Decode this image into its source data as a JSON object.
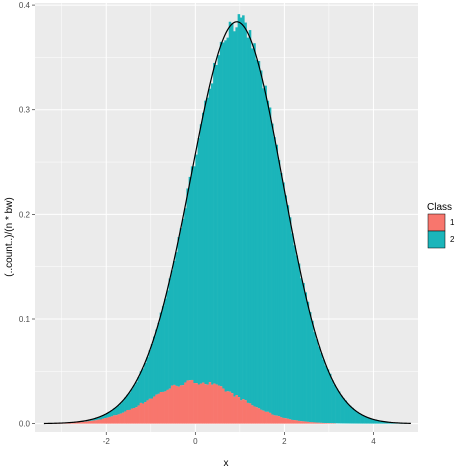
{
  "colors": {
    "class_1": "#F8766D",
    "class_2": "#1BB5BA",
    "panel_bg": "#EBEBEB",
    "grid_major": "#FFFFFF",
    "density_line": "#000000"
  },
  "chart_data": {
    "type": "histogram",
    "xlabel": "x",
    "ylabel": "(..count..)/(n * bw)",
    "xlim": [
      -3.6,
      5.0
    ],
    "ylim": [
      -0.008,
      0.402
    ],
    "x_ticks": [
      -2,
      0,
      2,
      4
    ],
    "x_tick_labels": [
      "-2",
      "0",
      "2",
      "4"
    ],
    "y_ticks": [
      0.0,
      0.1,
      0.2,
      0.3,
      0.4
    ],
    "y_tick_labels": [
      "0.0",
      "0.1",
      "0.2",
      "0.3",
      "0.4"
    ],
    "grid": true,
    "stacked": true,
    "bin_width": 0.05,
    "legend": {
      "title": "Class",
      "position": "right",
      "entries": [
        {
          "label": "1",
          "color": "#F8766D"
        },
        {
          "label": "2",
          "color": "#1BB5BA"
        }
      ]
    },
    "series": [
      {
        "name": "1",
        "distribution": "normal",
        "mean": 0.0,
        "sd": 1.0,
        "weight": 0.1,
        "peak_density": 0.04
      },
      {
        "name": "2",
        "distribution": "normal",
        "mean": 1.0,
        "sd": 1.0,
        "weight": 0.9,
        "peak_density": 0.36
      }
    ],
    "overlay": {
      "type": "density_line",
      "description": "total density",
      "peak": 0.383,
      "peak_x": 0.95
    }
  }
}
